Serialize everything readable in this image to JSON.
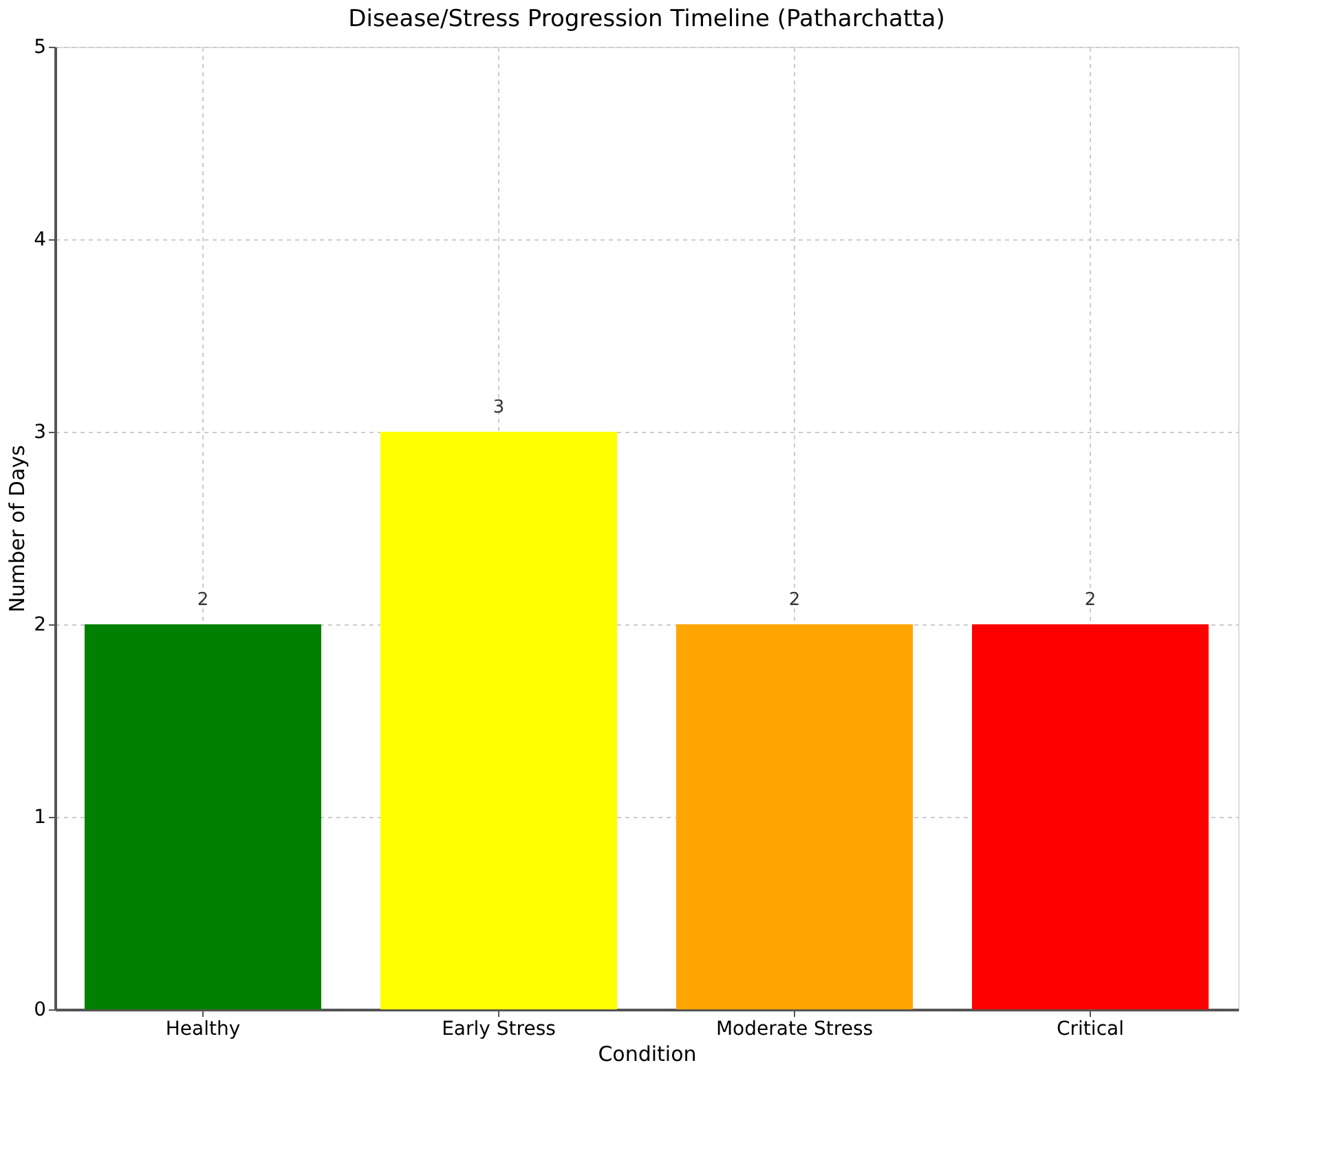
{
  "chart_data": {
    "type": "bar",
    "title": "Disease/Stress Progression Timeline (Patharchatta)",
    "xlabel": "Condition",
    "ylabel": "Number of Days",
    "categories": [
      "Healthy",
      "Early Stress",
      "Moderate Stress",
      "Critical"
    ],
    "values": [
      2,
      3,
      2,
      2
    ],
    "colors": [
      "#008000",
      "#ffff00",
      "#ffa500",
      "#ff0000"
    ],
    "ylim": [
      0,
      5
    ],
    "yticks": [
      0,
      1,
      2,
      3,
      4,
      5
    ],
    "grid": true,
    "data_labels": true
  }
}
